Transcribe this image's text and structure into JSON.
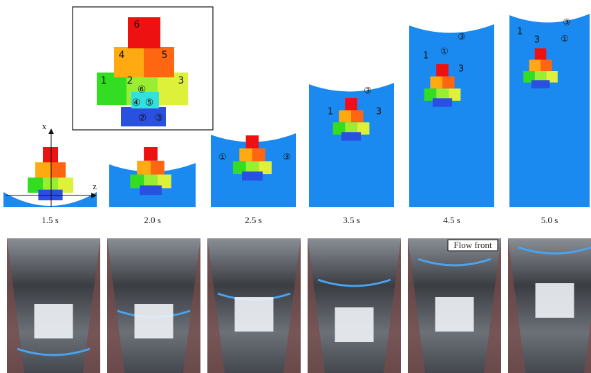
{
  "inset": {
    "labels": [
      "6",
      "4",
      "5",
      "1",
      "2",
      "3",
      "⑥",
      "④",
      "⑤",
      "②",
      "③"
    ]
  },
  "axes": {
    "x": "x",
    "z": "z"
  },
  "panels": [
    {
      "time": "1.5 s",
      "labels": []
    },
    {
      "time": "2.0 s",
      "labels": []
    },
    {
      "time": "2.5 s",
      "labels": [
        "①",
        "③"
      ]
    },
    {
      "time": "3.5 s",
      "labels": [
        "③",
        "1",
        "3"
      ]
    },
    {
      "time": "4.5 s",
      "labels": [
        "③",
        "①",
        "1",
        "3"
      ]
    },
    {
      "time": "5.0 s",
      "labels": [
        "③",
        "①",
        "1",
        "3"
      ]
    }
  ],
  "photo": {
    "annotation": "Flow front"
  }
}
